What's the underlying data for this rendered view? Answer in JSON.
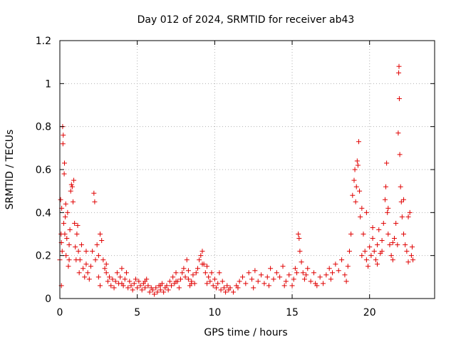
{
  "chart_data": {
    "type": "scatter",
    "title": "Day 012 of 2024, SRMTID for receiver ab43",
    "xlabel": "GPS time / hours",
    "ylabel": "SRMTID / TECUs",
    "xlim": [
      0,
      24.2
    ],
    "ylim": [
      0,
      1.2
    ],
    "xticks": [
      0,
      5,
      10,
      15,
      20
    ],
    "xtick_labels": [
      "0",
      "5",
      "10",
      "15",
      "20"
    ],
    "yticks": [
      0,
      0.2,
      0.4,
      0.6,
      0.8,
      1.0,
      1.2
    ],
    "ytick_labels": [
      "0",
      "0.2",
      "0.4",
      "0.6",
      "0.8",
      "1",
      "1.2"
    ],
    "grid": true,
    "marker": "+",
    "color": "#e00000",
    "series": [
      {
        "name": "ab43",
        "points": [
          [
            0.0,
            0.18
          ],
          [
            0.05,
            0.46
          ],
          [
            0.08,
            0.3
          ],
          [
            0.1,
            0.26
          ],
          [
            0.12,
            0.42
          ],
          [
            0.15,
            0.22
          ],
          [
            0.18,
            0.8
          ],
          [
            0.2,
            0.72
          ],
          [
            0.22,
            0.76
          ],
          [
            0.25,
            0.35
          ],
          [
            0.28,
            0.58
          ],
          [
            0.3,
            0.63
          ],
          [
            0.32,
            0.3
          ],
          [
            0.35,
            0.38
          ],
          [
            0.38,
            0.44
          ],
          [
            0.4,
            0.2
          ],
          [
            0.45,
            0.28
          ],
          [
            0.5,
            0.4
          ],
          [
            0.55,
            0.15
          ],
          [
            0.6,
            0.25
          ],
          [
            0.65,
            0.32
          ],
          [
            0.7,
            0.5
          ],
          [
            0.75,
            0.53
          ],
          [
            0.8,
            0.52
          ],
          [
            0.85,
            0.45
          ],
          [
            0.9,
            0.55
          ],
          [
            0.95,
            0.35
          ],
          [
            1.0,
            0.24
          ],
          [
            1.05,
            0.18
          ],
          [
            1.1,
            0.3
          ],
          [
            1.15,
            0.34
          ],
          [
            1.2,
            0.22
          ],
          [
            1.25,
            0.12
          ],
          [
            1.3,
            0.18
          ],
          [
            1.4,
            0.25
          ],
          [
            1.5,
            0.14
          ],
          [
            1.6,
            0.1
          ],
          [
            1.7,
            0.16
          ],
          [
            1.8,
            0.12
          ],
          [
            1.9,
            0.09
          ],
          [
            2.0,
            0.15
          ],
          [
            2.1,
            0.22
          ],
          [
            2.2,
            0.49
          ],
          [
            2.25,
            0.45
          ],
          [
            2.3,
            0.18
          ],
          [
            2.4,
            0.25
          ],
          [
            2.5,
            0.2
          ],
          [
            2.6,
            0.3
          ],
          [
            2.7,
            0.27
          ],
          [
            2.8,
            0.18
          ],
          [
            2.9,
            0.14
          ],
          [
            3.0,
            0.12
          ],
          [
            3.1,
            0.08
          ],
          [
            3.2,
            0.1
          ],
          [
            3.3,
            0.06
          ],
          [
            3.4,
            0.09
          ],
          [
            3.5,
            0.05
          ],
          [
            3.6,
            0.08
          ],
          [
            3.7,
            0.12
          ],
          [
            3.8,
            0.07
          ],
          [
            3.9,
            0.1
          ],
          [
            4.0,
            0.14
          ],
          [
            4.1,
            0.06
          ],
          [
            4.2,
            0.09
          ],
          [
            4.3,
            0.12
          ],
          [
            4.4,
            0.05
          ],
          [
            4.5,
            0.08
          ],
          [
            4.6,
            0.06
          ],
          [
            4.7,
            0.04
          ],
          [
            4.8,
            0.07
          ],
          [
            4.9,
            0.09
          ],
          [
            5.0,
            0.05
          ],
          [
            5.1,
            0.08
          ],
          [
            5.2,
            0.06
          ],
          [
            5.3,
            0.04
          ],
          [
            5.4,
            0.07
          ],
          [
            5.5,
            0.05
          ],
          [
            5.6,
            0.09
          ],
          [
            5.7,
            0.06
          ],
          [
            5.8,
            0.03
          ],
          [
            5.9,
            0.05
          ],
          [
            6.0,
            0.04
          ],
          [
            6.1,
            0.02
          ],
          [
            6.2,
            0.05
          ],
          [
            6.3,
            0.03
          ],
          [
            6.4,
            0.06
          ],
          [
            6.5,
            0.04
          ],
          [
            6.6,
            0.07
          ],
          [
            6.7,
            0.03
          ],
          [
            6.8,
            0.05
          ],
          [
            6.9,
            0.06
          ],
          [
            7.0,
            0.04
          ],
          [
            7.1,
            0.08
          ],
          [
            7.2,
            0.06
          ],
          [
            7.3,
            0.1
          ],
          [
            7.4,
            0.07
          ],
          [
            7.5,
            0.12
          ],
          [
            7.6,
            0.08
          ],
          [
            7.7,
            0.05
          ],
          [
            7.8,
            0.09
          ],
          [
            7.9,
            0.12
          ],
          [
            8.0,
            0.14
          ],
          [
            8.1,
            0.1
          ],
          [
            8.2,
            0.18
          ],
          [
            8.3,
            0.09
          ],
          [
            8.4,
            0.06
          ],
          [
            8.5,
            0.08
          ],
          [
            8.6,
            0.11
          ],
          [
            8.7,
            0.07
          ],
          [
            8.8,
            0.12
          ],
          [
            8.9,
            0.14
          ],
          [
            9.0,
            0.18
          ],
          [
            9.1,
            0.2
          ],
          [
            9.2,
            0.22
          ],
          [
            9.3,
            0.16
          ],
          [
            9.4,
            0.12
          ],
          [
            9.5,
            0.15
          ],
          [
            9.6,
            0.1
          ],
          [
            9.7,
            0.08
          ],
          [
            9.8,
            0.12
          ],
          [
            9.9,
            0.06
          ],
          [
            10.0,
            0.09
          ],
          [
            10.1,
            0.05
          ],
          [
            10.2,
            0.07
          ],
          [
            10.3,
            0.12
          ],
          [
            10.4,
            0.04
          ],
          [
            10.5,
            0.08
          ],
          [
            10.6,
            0.05
          ],
          [
            10.7,
            0.03
          ],
          [
            10.8,
            0.06
          ],
          [
            10.9,
            0.04
          ],
          [
            11.0,
            0.05
          ],
          [
            11.2,
            0.03
          ],
          [
            11.4,
            0.06
          ],
          [
            11.6,
            0.08
          ],
          [
            11.8,
            0.1
          ],
          [
            12.0,
            0.07
          ],
          [
            12.2,
            0.12
          ],
          [
            12.4,
            0.09
          ],
          [
            12.6,
            0.13
          ],
          [
            12.8,
            0.08
          ],
          [
            13.0,
            0.11
          ],
          [
            13.2,
            0.07
          ],
          [
            13.4,
            0.1
          ],
          [
            13.6,
            0.14
          ],
          [
            13.8,
            0.09
          ],
          [
            14.0,
            0.12
          ],
          [
            14.2,
            0.1
          ],
          [
            14.4,
            0.15
          ],
          [
            14.6,
            0.08
          ],
          [
            14.8,
            0.11
          ],
          [
            15.0,
            0.06
          ],
          [
            15.1,
            0.09
          ],
          [
            15.2,
            0.14
          ],
          [
            15.3,
            0.12
          ],
          [
            15.4,
            0.3
          ],
          [
            15.45,
            0.28
          ],
          [
            15.5,
            0.22
          ],
          [
            15.6,
            0.17
          ],
          [
            15.7,
            0.12
          ],
          [
            15.8,
            0.09
          ],
          [
            15.9,
            0.11
          ],
          [
            16.0,
            0.14
          ],
          [
            16.2,
            0.08
          ],
          [
            16.4,
            0.12
          ],
          [
            16.6,
            0.06
          ],
          [
            16.8,
            0.1
          ],
          [
            17.0,
            0.07
          ],
          [
            17.2,
            0.11
          ],
          [
            17.4,
            0.14
          ],
          [
            17.6,
            0.12
          ],
          [
            17.8,
            0.16
          ],
          [
            18.0,
            0.13
          ],
          [
            18.2,
            0.18
          ],
          [
            18.4,
            0.11
          ],
          [
            18.6,
            0.15
          ],
          [
            18.7,
            0.22
          ],
          [
            18.8,
            0.3
          ],
          [
            18.9,
            0.48
          ],
          [
            19.0,
            0.55
          ],
          [
            19.05,
            0.6
          ],
          [
            19.1,
            0.45
          ],
          [
            19.15,
            0.52
          ],
          [
            19.2,
            0.64
          ],
          [
            19.25,
            0.62
          ],
          [
            19.3,
            0.73
          ],
          [
            19.35,
            0.5
          ],
          [
            19.4,
            0.38
          ],
          [
            19.5,
            0.42
          ],
          [
            19.6,
            0.3
          ],
          [
            19.7,
            0.22
          ],
          [
            19.8,
            0.18
          ],
          [
            19.9,
            0.15
          ],
          [
            20.0,
            0.24
          ],
          [
            20.1,
            0.2
          ],
          [
            20.2,
            0.28
          ],
          [
            20.3,
            0.22
          ],
          [
            20.4,
            0.18
          ],
          [
            20.5,
            0.25
          ],
          [
            20.6,
            0.32
          ],
          [
            20.7,
            0.21
          ],
          [
            20.8,
            0.27
          ],
          [
            20.9,
            0.35
          ],
          [
            21.0,
            0.46
          ],
          [
            21.05,
            0.52
          ],
          [
            21.1,
            0.63
          ],
          [
            21.15,
            0.4
          ],
          [
            21.2,
            0.3
          ],
          [
            21.3,
            0.25
          ],
          [
            21.4,
            0.2
          ],
          [
            21.5,
            0.18
          ],
          [
            21.6,
            0.28
          ],
          [
            21.7,
            0.35
          ],
          [
            21.8,
            0.25
          ],
          [
            21.85,
            0.77
          ],
          [
            21.88,
            1.05
          ],
          [
            21.9,
            1.08
          ],
          [
            21.92,
            0.93
          ],
          [
            21.95,
            0.67
          ],
          [
            22.0,
            0.52
          ],
          [
            22.05,
            0.45
          ],
          [
            22.1,
            0.38
          ],
          [
            22.2,
            0.3
          ],
          [
            22.3,
            0.25
          ],
          [
            22.4,
            0.22
          ],
          [
            22.5,
            0.38
          ],
          [
            22.6,
            0.4
          ],
          [
            22.7,
            0.2
          ],
          [
            22.75,
            0.24
          ],
          [
            22.8,
            0.18
          ],
          [
            0.1,
            0.06
          ],
          [
            0.6,
            0.18
          ],
          [
            1.7,
            0.22
          ],
          [
            2.6,
            0.06
          ],
          [
            4.0,
            0.07
          ],
          [
            5.5,
            0.08
          ],
          [
            6.5,
            0.06
          ],
          [
            7.5,
            0.08
          ],
          [
            8.5,
            0.07
          ],
          [
            9.5,
            0.07
          ],
          [
            11.5,
            0.05
          ],
          [
            12.5,
            0.05
          ],
          [
            13.5,
            0.06
          ],
          [
            14.5,
            0.06
          ],
          [
            16.5,
            0.07
          ],
          [
            17.5,
            0.09
          ],
          [
            18.5,
            0.08
          ],
          [
            19.5,
            0.2
          ],
          [
            20.5,
            0.16
          ],
          [
            21.5,
            0.26
          ],
          [
            22.5,
            0.17
          ],
          [
            20.2,
            0.33
          ],
          [
            19.8,
            0.4
          ],
          [
            21.2,
            0.42
          ],
          [
            20.8,
            0.22
          ],
          [
            22.2,
            0.46
          ],
          [
            9.2,
            0.16
          ],
          [
            8.3,
            0.13
          ],
          [
            3.0,
            0.16
          ],
          [
            2.5,
            0.1
          ]
        ]
      }
    ]
  }
}
